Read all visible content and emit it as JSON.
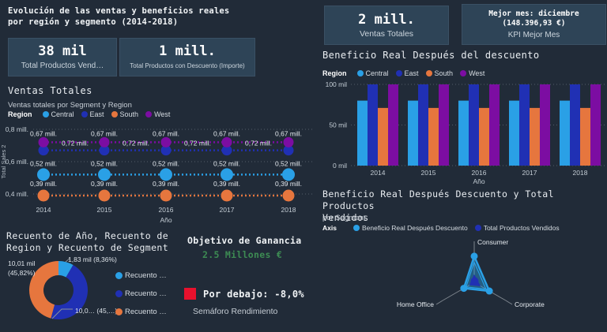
{
  "colors": {
    "background": "#212b38",
    "card_bg": "#2e4457",
    "central": "#2aa0e6",
    "east": "#2030b4",
    "south": "#e6763e",
    "west": "#7c0da2",
    "green": "#3d8b53",
    "red": "#e8112d",
    "grid": "#525c68",
    "text": "#ffffff",
    "muted": "#c6cdd5"
  },
  "header": {
    "title_line1": "Evolución de las ventas y beneficios reales",
    "title_line2": "por región y segmento (2014-2018)"
  },
  "kpi_cards": {
    "products_sold": {
      "value": "38 mil",
      "label": "Total Productos Vend…"
    },
    "discount_products": {
      "value": "1 mill.",
      "label": "Total Productos con Descuento (Importe)"
    },
    "total_sales": {
      "value": "2 mill.",
      "label": "Ventas Totales"
    },
    "best_month": {
      "line1": "Mejor mes: diciembre",
      "line2": "(148.396,93 €)",
      "label": "KPI Mejor Mes"
    }
  },
  "goal": {
    "title": "Objetivo de Ganancia",
    "value": "2.5 Millones €",
    "status": "Por debajo: -8,0%",
    "caption": "Semáforo Rendimiento"
  },
  "chart_data": [
    {
      "type": "line",
      "title": "Ventas Totales",
      "subtitle": "Ventas totales por Segment y Region",
      "legend_title": "Region",
      "legend_position": "top",
      "x": [
        "2014",
        "2015",
        "2016",
        "2017",
        "2018"
      ],
      "xlabel": "Año",
      "ylabel": "Total Sales 2",
      "ylim": [
        0.35,
        0.82
      ],
      "grid": true,
      "yticks": [
        {
          "value": 0.8,
          "label": "0,8 mill."
        },
        {
          "value": 0.6,
          "label": "0,6 mill."
        },
        {
          "value": 0.4,
          "label": "0,4 mill."
        }
      ],
      "series": [
        {
          "name": "Central",
          "color": "central",
          "values": [
            0.52,
            0.52,
            0.52,
            0.52,
            0.52
          ],
          "point_label": "0,52 mill."
        },
        {
          "name": "East",
          "color": "east",
          "values": [
            0.67,
            0.67,
            0.67,
            0.67,
            0.67
          ],
          "point_label": "0,67 mill."
        },
        {
          "name": "South",
          "color": "south",
          "values": [
            0.39,
            0.39,
            0.39,
            0.39,
            0.39
          ],
          "point_label": "0,39 mill."
        },
        {
          "name": "West",
          "color": "west",
          "values": [
            0.72,
            0.72,
            0.72,
            0.72,
            0.72
          ],
          "point_label": "0,72 mill."
        }
      ]
    },
    {
      "type": "bar",
      "title": "Beneficio Real Después del descuento",
      "legend_title": "Region",
      "legend_position": "top",
      "categories": [
        "2014",
        "2015",
        "2016",
        "2017",
        "2018"
      ],
      "xlabel": "Año",
      "ylim": [
        0,
        100
      ],
      "grid": true,
      "yticks": [
        {
          "value": 100,
          "label": "100 mil"
        },
        {
          "value": 50,
          "label": "50 mil"
        },
        {
          "value": 0,
          "label": "0 mil"
        }
      ],
      "series": [
        {
          "name": "Central",
          "color": "central",
          "values": [
            80,
            80,
            80,
            80,
            80
          ]
        },
        {
          "name": "East",
          "color": "east",
          "values": [
            100,
            100,
            100,
            100,
            100
          ]
        },
        {
          "name": "South",
          "color": "south",
          "values": [
            71,
            71,
            71,
            71,
            71
          ]
        },
        {
          "name": "West",
          "color": "west",
          "values": [
            100,
            100,
            100,
            100,
            100
          ]
        }
      ]
    },
    {
      "type": "pie",
      "title_line1": "Recuento de Año, Recuento de",
      "title_line2": "Region y Recuento de Segment",
      "slices": [
        {
          "name": "Recuento …",
          "color": "central",
          "pct": 8.36,
          "label": "1,83 mil (8,36%)"
        },
        {
          "name": "Recuento …",
          "color": "east",
          "pct": 45.82,
          "label": "10,0… (45,…)"
        },
        {
          "name": "Recuento …",
          "color": "south",
          "pct": 45.82,
          "label_line1": "10,01 mil",
          "label_line2": "(45,82%)"
        }
      ]
    },
    {
      "type": "radar",
      "title_line1": "Beneficio Real Después Descuento y Total Productos",
      "title_line2": "Vendidos",
      "subtitle": "por Segment",
      "legend_title": "Axis",
      "axes": [
        "Consumer",
        "Corporate",
        "Home Office"
      ],
      "series": [
        {
          "name": "Beneficio Real Después Descuento",
          "color": "central",
          "values": [
            0.72,
            0.48,
            0.33
          ]
        },
        {
          "name": "Total Productos Vendidos",
          "color": "east",
          "values": [
            0.17,
            0.16,
            0.12
          ]
        }
      ]
    }
  ]
}
